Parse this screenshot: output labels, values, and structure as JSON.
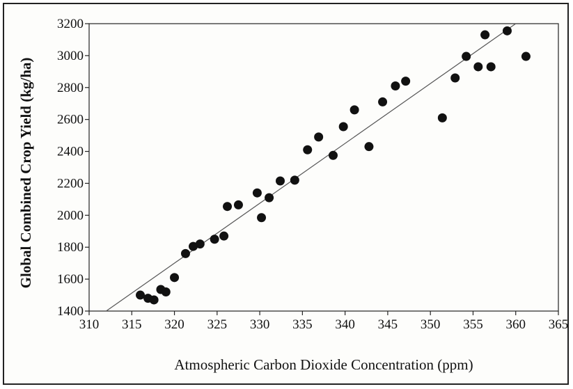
{
  "chart_data": {
    "type": "scatter",
    "title": "",
    "xlabel": "Atmospheric Carbon Dioxide Concentration (ppm)",
    "ylabel": "Global Combined Crop Yield (kg/ha)",
    "xlim": [
      310,
      365
    ],
    "ylim": [
      1400,
      3200
    ],
    "xticks": [
      "310",
      "315",
      "320",
      "325",
      "330",
      "335",
      "340",
      "345",
      "350",
      "355",
      "360",
      "365"
    ],
    "yticks": [
      "1400",
      "1600",
      "1800",
      "2000",
      "2200",
      "2400",
      "2600",
      "2800",
      "3000",
      "3200"
    ],
    "grid": false,
    "point_color": "#111111",
    "trendline": {
      "x": [
        312,
        360
      ],
      "y": [
        1400,
        3200
      ],
      "color": "#555555"
    },
    "points": [
      {
        "x": 316.0,
        "y": 1500
      },
      {
        "x": 316.9,
        "y": 1480
      },
      {
        "x": 317.6,
        "y": 1470
      },
      {
        "x": 318.4,
        "y": 1535
      },
      {
        "x": 319.0,
        "y": 1520
      },
      {
        "x": 320.0,
        "y": 1610
      },
      {
        "x": 321.3,
        "y": 1760
      },
      {
        "x": 322.2,
        "y": 1805
      },
      {
        "x": 323.0,
        "y": 1820
      },
      {
        "x": 324.7,
        "y": 1850
      },
      {
        "x": 325.8,
        "y": 1870
      },
      {
        "x": 326.2,
        "y": 2055
      },
      {
        "x": 327.5,
        "y": 2065
      },
      {
        "x": 329.7,
        "y": 2140
      },
      {
        "x": 330.2,
        "y": 1985
      },
      {
        "x": 331.1,
        "y": 2110
      },
      {
        "x": 332.4,
        "y": 2215
      },
      {
        "x": 334.1,
        "y": 2220
      },
      {
        "x": 335.6,
        "y": 2410
      },
      {
        "x": 336.9,
        "y": 2490
      },
      {
        "x": 338.6,
        "y": 2375
      },
      {
        "x": 339.8,
        "y": 2555
      },
      {
        "x": 341.1,
        "y": 2660
      },
      {
        "x": 342.8,
        "y": 2430
      },
      {
        "x": 344.4,
        "y": 2710
      },
      {
        "x": 345.9,
        "y": 2810
      },
      {
        "x": 347.1,
        "y": 2840
      },
      {
        "x": 351.4,
        "y": 2610
      },
      {
        "x": 352.9,
        "y": 2860
      },
      {
        "x": 354.2,
        "y": 2995
      },
      {
        "x": 355.6,
        "y": 2930
      },
      {
        "x": 356.4,
        "y": 3130
      },
      {
        "x": 357.1,
        "y": 2930
      },
      {
        "x": 359.0,
        "y": 3155
      },
      {
        "x": 361.2,
        "y": 2995
      }
    ]
  }
}
